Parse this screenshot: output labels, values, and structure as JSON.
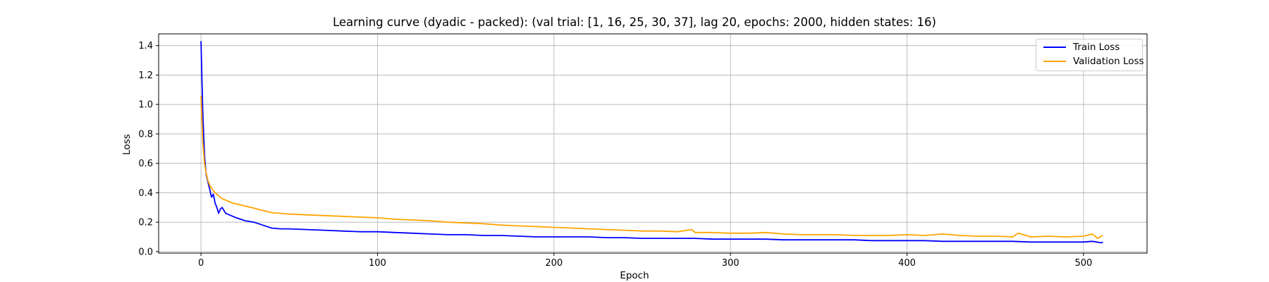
{
  "chart_data": {
    "type": "line",
    "title": "Learning curve (dyadic - packed): (val trial: [1, 16, 25, 30, 37], lag 20, epochs: 2000, hidden states: 16)",
    "xlabel": "Epoch",
    "ylabel": "Loss",
    "xlim": [
      -24,
      536
    ],
    "ylim": [
      -0.01,
      1.48
    ],
    "xticks": [
      0,
      100,
      200,
      300,
      400,
      500
    ],
    "yticks": [
      0.0,
      0.2,
      0.4,
      0.6,
      0.8,
      1.0,
      1.2,
      1.4
    ],
    "xtick_labels": [
      "0",
      "100",
      "200",
      "300",
      "400",
      "500"
    ],
    "ytick_labels": [
      "0.0",
      "0.2",
      "0.4",
      "0.6",
      "0.8",
      "1.0",
      "1.2",
      "1.4"
    ],
    "grid": true,
    "legend_position": "top-right",
    "series": [
      {
        "name": "Train Loss",
        "color": "#0000ff",
        "x": [
          0,
          1,
          2,
          3,
          4,
          5,
          6,
          7,
          8,
          9,
          10,
          11,
          12,
          14,
          16,
          18,
          20,
          25,
          30,
          35,
          40,
          45,
          50,
          60,
          70,
          80,
          90,
          100,
          110,
          120,
          130,
          140,
          150,
          160,
          170,
          180,
          190,
          200,
          210,
          220,
          230,
          240,
          250,
          260,
          270,
          280,
          290,
          300,
          310,
          320,
          330,
          340,
          350,
          360,
          370,
          380,
          390,
          400,
          410,
          420,
          430,
          440,
          450,
          460,
          470,
          480,
          490,
          500,
          505,
          510,
          511
        ],
        "y": [
          1.43,
          0.95,
          0.65,
          0.52,
          0.47,
          0.42,
          0.37,
          0.39,
          0.33,
          0.3,
          0.26,
          0.29,
          0.3,
          0.26,
          0.25,
          0.24,
          0.23,
          0.21,
          0.2,
          0.18,
          0.16,
          0.155,
          0.155,
          0.15,
          0.145,
          0.14,
          0.135,
          0.135,
          0.13,
          0.125,
          0.12,
          0.115,
          0.115,
          0.11,
          0.11,
          0.105,
          0.1,
          0.1,
          0.1,
          0.1,
          0.095,
          0.095,
          0.09,
          0.09,
          0.09,
          0.09,
          0.085,
          0.085,
          0.085,
          0.085,
          0.08,
          0.08,
          0.08,
          0.08,
          0.08,
          0.075,
          0.075,
          0.075,
          0.075,
          0.07,
          0.07,
          0.07,
          0.07,
          0.07,
          0.065,
          0.065,
          0.065,
          0.065,
          0.07,
          0.06,
          0.065
        ]
      },
      {
        "name": "Validation Loss",
        "color": "#ffa500",
        "x": [
          0,
          1,
          2,
          3,
          4,
          5,
          6,
          8,
          10,
          12,
          15,
          18,
          20,
          25,
          30,
          35,
          40,
          45,
          50,
          60,
          70,
          80,
          90,
          100,
          110,
          120,
          130,
          140,
          150,
          160,
          170,
          180,
          190,
          200,
          210,
          220,
          230,
          240,
          250,
          260,
          270,
          278,
          280,
          290,
          300,
          310,
          320,
          330,
          340,
          350,
          360,
          370,
          380,
          390,
          400,
          410,
          420,
          430,
          440,
          450,
          460,
          463,
          470,
          480,
          490,
          500,
          505,
          508,
          511
        ],
        "y": [
          1.06,
          0.75,
          0.6,
          0.53,
          0.48,
          0.45,
          0.43,
          0.4,
          0.38,
          0.36,
          0.345,
          0.33,
          0.325,
          0.31,
          0.295,
          0.28,
          0.265,
          0.26,
          0.255,
          0.25,
          0.245,
          0.24,
          0.235,
          0.23,
          0.22,
          0.215,
          0.21,
          0.2,
          0.195,
          0.19,
          0.18,
          0.175,
          0.17,
          0.165,
          0.16,
          0.155,
          0.15,
          0.145,
          0.14,
          0.14,
          0.135,
          0.15,
          0.13,
          0.13,
          0.125,
          0.125,
          0.13,
          0.12,
          0.115,
          0.115,
          0.115,
          0.11,
          0.11,
          0.11,
          0.115,
          0.11,
          0.12,
          0.11,
          0.105,
          0.105,
          0.1,
          0.125,
          0.1,
          0.105,
          0.1,
          0.105,
          0.12,
          0.09,
          0.11
        ]
      }
    ]
  }
}
